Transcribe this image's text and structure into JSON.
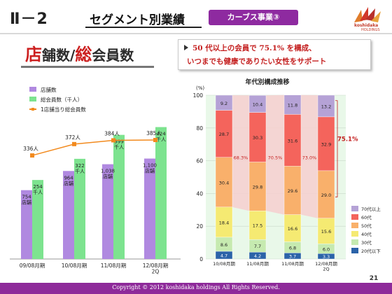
{
  "header": {
    "section_no": "Ⅱ－2",
    "title": "セグメント別業績",
    "badge": "カーブス事業③",
    "logo_text": "koshidaka",
    "logo_sub": "HOLDINGS"
  },
  "subtitle": {
    "part1": "店",
    "part2": "舗数/",
    "part3": "総",
    "part4": "会員数"
  },
  "callout": {
    "line1": "50 代以上の会員で 75.1% を構成、",
    "line2": "いつまでも健康でありたい女性をサポート"
  },
  "footer": {
    "copyright": "Copyright © 2012 koshidaka holdings All Rights Reserved.",
    "page": "21"
  },
  "colors": {
    "purple": "#8e2a9a",
    "stores_bar": "#b089e0",
    "members_bar": "#7de38f",
    "avg_line": "#f28a1e",
    "age_70": "#b5a2d6",
    "age_60": "#f4645c",
    "age_50": "#f9b06b",
    "age_40": "#f5ea72",
    "age_30": "#c6eab0",
    "age_20": "#2b63a8"
  },
  "chart_data": [
    {
      "type": "bar",
      "categories": [
        "09/08月期",
        "10/08月期",
        "11/08月期",
        "12/08月期\n2Q"
      ],
      "series": [
        {
          "name": "店舗数",
          "values": [
            754,
            964,
            1038,
            1100
          ],
          "value_labels": [
            "754\n店舗",
            "964\n店舗",
            "1,038\n店舗",
            "1,100\n店舗"
          ]
        },
        {
          "name": "総会員数（千人）",
          "values": [
            254,
            322,
            399,
            424
          ],
          "value_labels": [
            "254\n千人",
            "322\n千人",
            "399\n千人",
            "424\n千人"
          ]
        },
        {
          "name": "1店舗当り総会員数",
          "type": "line",
          "values": [
            336,
            372,
            384,
            385
          ],
          "value_labels": [
            "336人",
            "372人",
            "384人",
            "385人"
          ]
        }
      ],
      "legend": "top-left"
    },
    {
      "type": "bar",
      "stacked": true,
      "title": "年代別構成推移",
      "ylabel": "(%)",
      "ylim": [
        0,
        100
      ],
      "yticks": [
        0,
        20,
        40,
        60,
        80,
        100
      ],
      "categories": [
        "10/08月期",
        "11/08月期",
        "11/08月期",
        "12/08月期\n2Q"
      ],
      "series": [
        {
          "name": "20代以下",
          "values": [
            4.7,
            4.2,
            3.7,
            3.3
          ]
        },
        {
          "name": "30代",
          "values": [
            8.6,
            7.7,
            6.8,
            6.0
          ]
        },
        {
          "name": "40代",
          "values": [
            18.4,
            17.5,
            16.6,
            15.6
          ]
        },
        {
          "name": "50代",
          "values": [
            30.4,
            29.8,
            29.6,
            29.0
          ]
        },
        {
          "name": "60代",
          "values": [
            28.7,
            30.3,
            31.6,
            32.9
          ]
        },
        {
          "name": "70代以上",
          "values": [
            9.2,
            10.4,
            11.8,
            13.2
          ]
        }
      ],
      "shares_50_plus": [
        "68.3%",
        "70.5%",
        "73.0%",
        "75.1%"
      ],
      "legend": "right"
    }
  ]
}
